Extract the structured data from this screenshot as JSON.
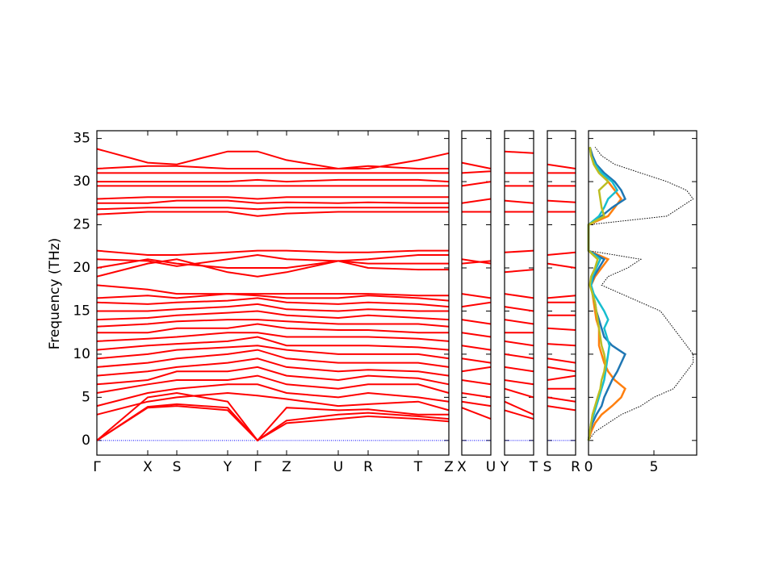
{
  "chart_data": [
    {
      "type": "line",
      "ylabel": "Frequency (THz)",
      "x": [
        0,
        0.63,
        0.99,
        1.62,
        1.99,
        2.35,
        2.99,
        3.36,
        3.98,
        4.36
      ],
      "xlim": [
        0,
        4.36
      ],
      "xticks": [
        {
          "value": 0,
          "label": "Γ"
        },
        {
          "value": 0.63,
          "label": "X"
        },
        {
          "value": 0.99,
          "label": "S"
        },
        {
          "value": 1.62,
          "label": "Y"
        },
        {
          "value": 1.99,
          "label": "Γ"
        },
        {
          "value": 2.35,
          "label": "Z"
        },
        {
          "value": 2.99,
          "label": "U"
        },
        {
          "value": 3.36,
          "label": "R"
        },
        {
          "value": 3.98,
          "label": "T"
        },
        {
          "value": 4.36,
          "label": "Z"
        }
      ],
      "ylim": [
        -1.7,
        35.9
      ],
      "yticks": [
        0,
        5,
        10,
        15,
        20,
        25,
        30,
        35
      ],
      "zero_line": {
        "color": "#0000ff",
        "value": 0
      },
      "color": "#ff0000",
      "series": [
        {
          "values": [
            0,
            3.8,
            4,
            3.5,
            0,
            2,
            2.5,
            2.8,
            2.5,
            2.2
          ]
        },
        {
          "values": [
            0,
            3.9,
            4.2,
            3.8,
            0,
            2.3,
            3,
            3.2,
            2.8,
            2.5
          ]
        },
        {
          "values": [
            0,
            5,
            5.5,
            4.5,
            0,
            3.8,
            3.5,
            3.6,
            3,
            3
          ]
        },
        {
          "values": [
            3,
            4.5,
            5,
            5.5,
            5.2,
            4.8,
            4,
            4.2,
            4.5,
            3.5
          ]
        },
        {
          "values": [
            4,
            5.5,
            6,
            6.5,
            6.5,
            5.5,
            5,
            5.5,
            5,
            4.5
          ]
        },
        {
          "values": [
            5.5,
            6.5,
            7,
            7,
            7.5,
            6.5,
            6,
            6.5,
            6.5,
            5.5
          ]
        },
        {
          "values": [
            6.5,
            7,
            8,
            8,
            8.5,
            7.5,
            7,
            7.5,
            7.2,
            6.5
          ]
        },
        {
          "values": [
            7.5,
            8,
            8.5,
            9,
            9.5,
            8.5,
            8,
            8.2,
            8,
            7.5
          ]
        },
        {
          "values": [
            8.5,
            9,
            9.5,
            10,
            10.5,
            9.5,
            9,
            9,
            9,
            8.5
          ]
        },
        {
          "values": [
            9.5,
            10,
            10.5,
            10.8,
            11,
            10.5,
            10,
            10,
            10,
            9.5
          ]
        },
        {
          "values": [
            10.5,
            11,
            11.2,
            11.5,
            12,
            11,
            11,
            11,
            10.8,
            10.5
          ]
        },
        {
          "values": [
            11.5,
            11.8,
            12,
            12.5,
            12.5,
            12,
            12,
            12,
            11.8,
            11.5
          ]
        },
        {
          "values": [
            12.5,
            12.5,
            13,
            13,
            13.5,
            13,
            12.8,
            12.8,
            12.5,
            12.5
          ]
        },
        {
          "values": [
            13.2,
            13.5,
            13.8,
            14,
            14,
            13.8,
            13.5,
            13.5,
            13.5,
            13.2
          ]
        },
        {
          "values": [
            14,
            14.2,
            14.5,
            14.8,
            15,
            14.5,
            14.2,
            14.5,
            14.2,
            14
          ]
        },
        {
          "values": [
            15,
            15,
            15.2,
            15.5,
            15.8,
            15.2,
            15,
            15.2,
            15,
            15
          ]
        },
        {
          "values": [
            16,
            15.8,
            16,
            16.2,
            16.5,
            16,
            15.8,
            16,
            15.8,
            15.5
          ]
        },
        {
          "values": [
            16.5,
            16.8,
            16.5,
            17,
            16.8,
            16.5,
            16.5,
            16.8,
            16.5,
            16.2
          ]
        },
        {
          "values": [
            18,
            17.5,
            17,
            17,
            17,
            17,
            17,
            17,
            16.8,
            16.8
          ]
        },
        {
          "values": [
            19,
            20.5,
            21,
            19.5,
            19,
            19.5,
            20.8,
            20,
            19.8,
            19.8
          ]
        },
        {
          "values": [
            20,
            21,
            20.5,
            20,
            20,
            20,
            20.8,
            20.5,
            20.5,
            20.5
          ]
        },
        {
          "values": [
            21,
            20.8,
            20.2,
            21,
            21.5,
            21,
            20.8,
            21,
            21.5,
            21.5
          ]
        },
        {
          "values": [
            22,
            21.5,
            21.5,
            21.8,
            22,
            22,
            21.8,
            21.8,
            22,
            22
          ]
        },
        {
          "values": [
            26.2,
            26.5,
            26.5,
            26.5,
            26,
            26.3,
            26.5,
            26.5,
            26.5,
            26.5
          ]
        },
        {
          "values": [
            26.8,
            27,
            27,
            27,
            26.8,
            27,
            27,
            27,
            27,
            27
          ]
        },
        {
          "values": [
            27.5,
            27.5,
            27.8,
            27.8,
            27.5,
            27.6,
            27.5,
            27.6,
            27.5,
            27.5
          ]
        },
        {
          "values": [
            28,
            28.2,
            28.2,
            28.2,
            28,
            28.2,
            28.2,
            28.2,
            28.2,
            28.2
          ]
        },
        {
          "values": [
            29.5,
            29.5,
            29.5,
            29.5,
            29.5,
            29.5,
            29.5,
            29.5,
            29.5,
            29.5
          ]
        },
        {
          "values": [
            30,
            30,
            30,
            30,
            30.2,
            30,
            30.2,
            30.2,
            30.2,
            30
          ]
        },
        {
          "values": [
            31,
            31,
            31,
            31,
            31,
            31,
            31,
            31,
            31,
            31
          ]
        },
        {
          "values": [
            31.5,
            31.8,
            31.8,
            31.5,
            31.5,
            31.5,
            31.5,
            31.8,
            31.5,
            31.5
          ]
        },
        {
          "values": [
            33.8,
            32.2,
            32,
            33.5,
            33.5,
            32.5,
            31.5,
            31.5,
            32.5,
            33.3
          ]
        }
      ]
    },
    {
      "type": "line",
      "x": [
        0,
        1
      ],
      "xlim": [
        0,
        1
      ],
      "xticks": [
        {
          "value": 0,
          "label": "X"
        },
        {
          "value": 1,
          "label": "U"
        }
      ],
      "zero_line": {
        "color": "#0000ff",
        "value": 0
      },
      "color": "#ff0000",
      "series": [
        {
          "values": [
            3.8,
            2.5
          ]
        },
        {
          "values": [
            4.5,
            4
          ]
        },
        {
          "values": [
            5.5,
            5
          ]
        },
        {
          "values": [
            7,
            6.5
          ]
        },
        {
          "values": [
            8,
            8.5
          ]
        },
        {
          "values": [
            9.5,
            9
          ]
        },
        {
          "values": [
            11,
            10.5
          ]
        },
        {
          "values": [
            12.5,
            12
          ]
        },
        {
          "values": [
            14,
            13.5
          ]
        },
        {
          "values": [
            15.5,
            16
          ]
        },
        {
          "values": [
            17,
            16.5
          ]
        },
        {
          "values": [
            20.5,
            20.8
          ]
        },
        {
          "values": [
            21,
            20.5
          ]
        },
        {
          "values": [
            26.5,
            26.5
          ]
        },
        {
          "values": [
            27.5,
            28
          ]
        },
        {
          "values": [
            29.5,
            30
          ]
        },
        {
          "values": [
            31,
            31.2
          ]
        },
        {
          "values": [
            32.2,
            31.5
          ]
        }
      ]
    },
    {
      "type": "line",
      "x": [
        0,
        1
      ],
      "xlim": [
        0,
        1
      ],
      "xticks": [
        {
          "value": 0,
          "label": "Y"
        },
        {
          "value": 1,
          "label": "T"
        }
      ],
      "zero_line": {
        "color": "#0000ff",
        "value": 0
      },
      "color": "#ff0000",
      "series": [
        {
          "values": [
            3.5,
            2.5
          ]
        },
        {
          "values": [
            4.5,
            3
          ]
        },
        {
          "values": [
            6,
            5
          ]
        },
        {
          "values": [
            7,
            6.5
          ]
        },
        {
          "values": [
            8.5,
            8
          ]
        },
        {
          "values": [
            10,
            9.5
          ]
        },
        {
          "values": [
            11.5,
            11
          ]
        },
        {
          "values": [
            12.5,
            12.5
          ]
        },
        {
          "values": [
            14,
            13.5
          ]
        },
        {
          "values": [
            15.5,
            15
          ]
        },
        {
          "values": [
            17,
            16.5
          ]
        },
        {
          "values": [
            19.5,
            19.8
          ]
        },
        {
          "values": [
            21.8,
            22
          ]
        },
        {
          "values": [
            26.5,
            26.5
          ]
        },
        {
          "values": [
            27.8,
            27.5
          ]
        },
        {
          "values": [
            29.5,
            29.5
          ]
        },
        {
          "values": [
            31,
            31
          ]
        },
        {
          "values": [
            33.5,
            33.3
          ]
        }
      ]
    },
    {
      "type": "line",
      "x": [
        0,
        1
      ],
      "xlim": [
        0,
        1
      ],
      "xticks": [
        {
          "value": 0,
          "label": "S"
        },
        {
          "value": 1,
          "label": "R"
        }
      ],
      "zero_line": {
        "color": "#0000ff",
        "value": 0
      },
      "color": "#ff0000",
      "series": [
        {
          "values": [
            4,
            3.5
          ]
        },
        {
          "values": [
            5,
            4.5
          ]
        },
        {
          "values": [
            6,
            6
          ]
        },
        {
          "values": [
            7,
            7.5
          ]
        },
        {
          "values": [
            8.5,
            8
          ]
        },
        {
          "values": [
            9.5,
            9
          ]
        },
        {
          "values": [
            11.2,
            11
          ]
        },
        {
          "values": [
            13,
            12.8
          ]
        },
        {
          "values": [
            14.5,
            14.5
          ]
        },
        {
          "values": [
            16,
            16
          ]
        },
        {
          "values": [
            16.5,
            16.8
          ]
        },
        {
          "values": [
            20.5,
            20
          ]
        },
        {
          "values": [
            21.5,
            21.8
          ]
        },
        {
          "values": [
            26.5,
            26.5
          ]
        },
        {
          "values": [
            27.8,
            27.6
          ]
        },
        {
          "values": [
            29.5,
            29.5
          ]
        },
        {
          "values": [
            31,
            31
          ]
        },
        {
          "values": [
            32,
            31.5
          ]
        }
      ]
    },
    {
      "type": "dos",
      "y": [
        0,
        1,
        2,
        3,
        4,
        5,
        6,
        7,
        8,
        9,
        10,
        11,
        12,
        13,
        14,
        15,
        16,
        17,
        18,
        19,
        20,
        21,
        22,
        23,
        24,
        25,
        26,
        27,
        28,
        29,
        30,
        31,
        32,
        33,
        34
      ],
      "xlim": [
        0,
        8.27
      ],
      "xticks": [
        0,
        5
      ],
      "series": [
        {
          "color": "#000000",
          "style": "dotted",
          "values": [
            0,
            0.5,
            1.5,
            2.5,
            4,
            5,
            6.5,
            7,
            7.5,
            8,
            8,
            7.5,
            7,
            6.5,
            6,
            5.5,
            4,
            2.5,
            1,
            1.5,
            3,
            4,
            0,
            0,
            0,
            0,
            6,
            7,
            8,
            7.5,
            6,
            4,
            2,
            1,
            0.5
          ]
        },
        {
          "color": "#ff7f0e",
          "values": [
            0,
            0.2,
            0.5,
            1,
            1.8,
            2.5,
            2.8,
            2,
            1.5,
            1.2,
            1,
            0.8,
            0.8,
            0.8,
            0.6,
            0.5,
            0.4,
            0.3,
            0.2,
            0.5,
            1,
            1.5,
            0,
            0,
            0,
            0,
            1.5,
            2,
            2.5,
            2,
            1.5,
            1,
            0.5,
            0.3,
            0.1
          ]
        },
        {
          "color": "#1f77b4",
          "values": [
            0,
            0.1,
            0.3,
            0.6,
            1,
            1.2,
            1.5,
            1.8,
            2.2,
            2.5,
            2.8,
            1.8,
            1.2,
            1,
            0.8,
            0.6,
            0.5,
            0.3,
            0.2,
            0.4,
            0.8,
            1.2,
            0,
            0,
            0,
            0,
            1,
            1.8,
            2.8,
            2.5,
            2,
            1.2,
            0.6,
            0.3,
            0.1
          ]
        },
        {
          "color": "#17becf",
          "values": [
            0,
            0.1,
            0.2,
            0.4,
            0.6,
            0.8,
            1,
            1.2,
            1.3,
            1.4,
            1.5,
            1.6,
            1.4,
            1.2,
            1.5,
            1.2,
            0.8,
            0.4,
            0.2,
            0.3,
            0.6,
            0.9,
            0,
            0,
            0,
            0,
            0.8,
            1.2,
            1.5,
            2.2,
            1.8,
            1,
            0.5,
            0.2,
            0.1
          ]
        },
        {
          "color": "#bcbd22",
          "values": [
            0,
            0.1,
            0.2,
            0.3,
            0.5,
            0.7,
            0.9,
            1,
            1.2,
            1.3,
            1.2,
            1,
            0.9,
            0.8,
            0.7,
            0.6,
            0.5,
            0.3,
            0.1,
            0.2,
            0.5,
            0.7,
            0,
            0,
            0,
            0,
            1.2,
            1,
            0.9,
            0.8,
            1.5,
            0.8,
            0.4,
            0.2,
            0.1
          ]
        }
      ]
    }
  ]
}
